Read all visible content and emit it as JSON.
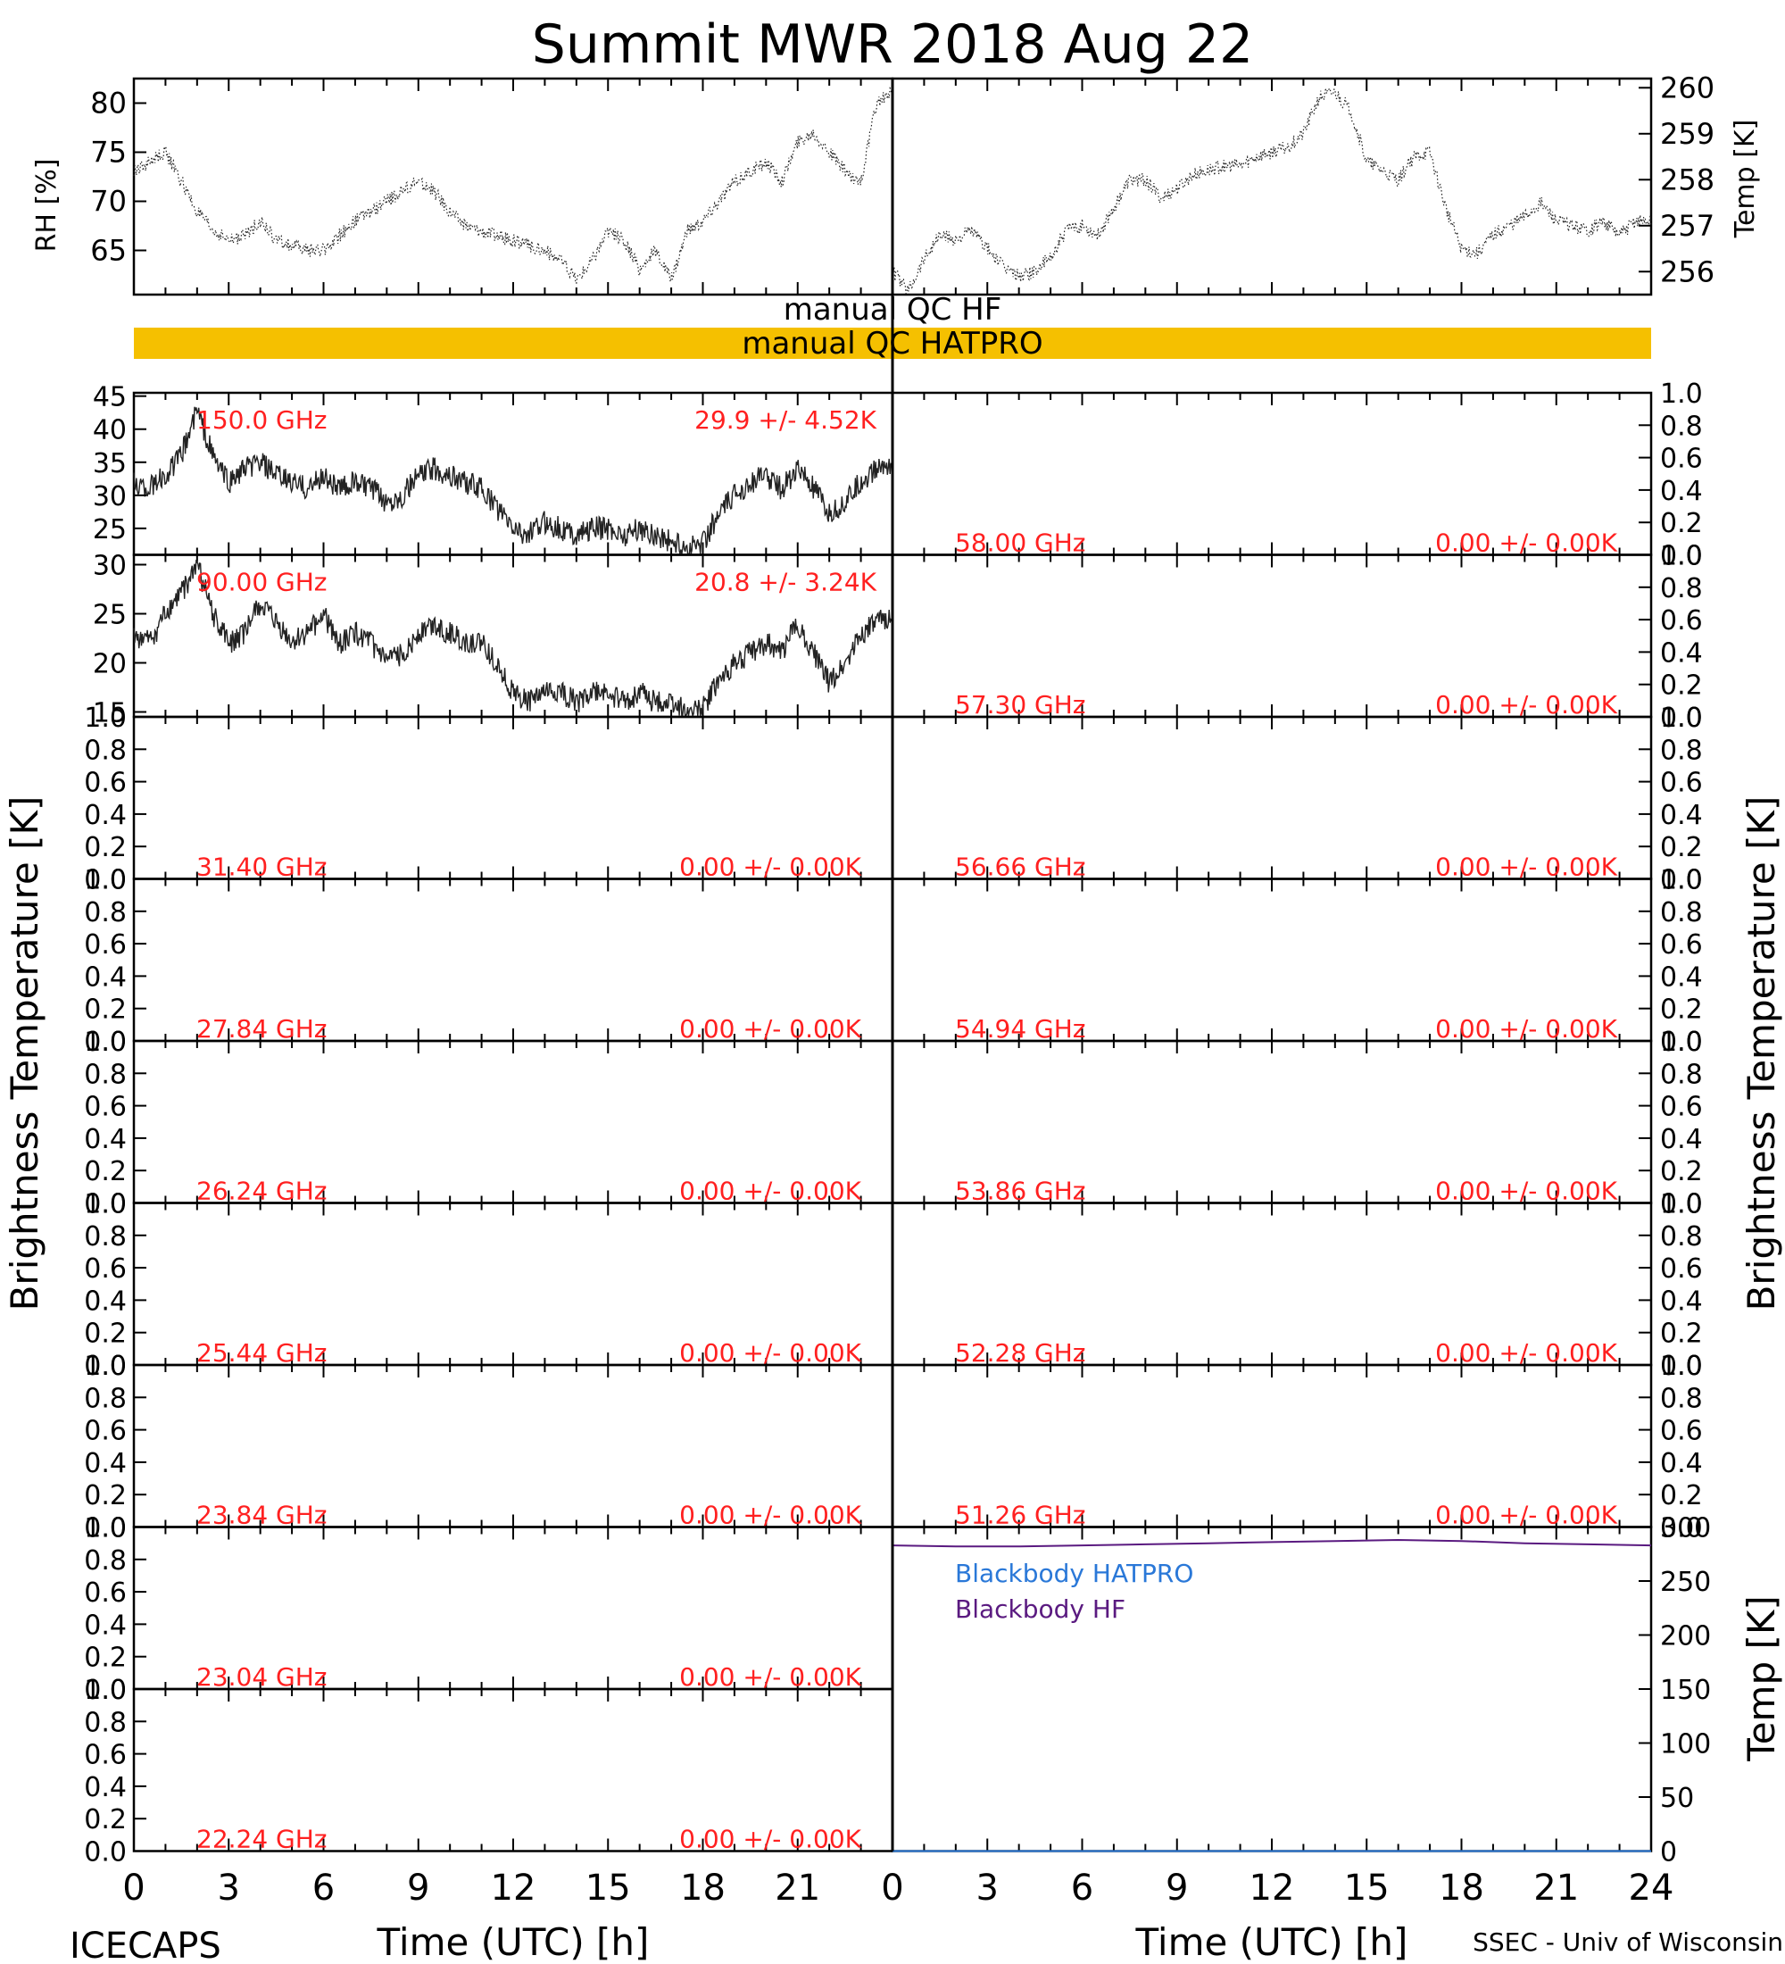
{
  "title": "Summit MWR 2018 Aug 22",
  "footer": {
    "left": "ICECAPS",
    "right": "SSEC - Univ of Wisconsin"
  },
  "colors": {
    "red": "#ff2020",
    "qc_bar": "#f5c000",
    "blue": "#2a78d8",
    "purple": "#5a1a80",
    "trace": "#222222"
  },
  "met": {
    "rh_label": "RH [%]",
    "temp_label": "Temp [K]",
    "rh_ticks": [
      "65",
      "70",
      "75",
      "80"
    ],
    "temp_ticks": [
      "256",
      "257",
      "258",
      "259",
      "260"
    ]
  },
  "qc": {
    "hf_label": "manual QC HF",
    "hatpro_label": "manual QC HATPRO"
  },
  "axis": {
    "xlabel": "Time (UTC) [h]",
    "x_ticks": [
      "0",
      "3",
      "6",
      "9",
      "12",
      "15",
      "18",
      "21"
    ],
    "x_ticks_right": [
      "0",
      "3",
      "6",
      "9",
      "12",
      "15",
      "18",
      "21",
      "24"
    ],
    "ylabel": "Brightness Temperature [K]",
    "unit_ticks": [
      "0.0",
      "0.2",
      "0.4",
      "0.6",
      "0.8",
      "1.0"
    ],
    "bb_ylabel": "Temp [K]",
    "bb_ticks": [
      "0",
      "50",
      "100",
      "150",
      "200",
      "250",
      "300"
    ]
  },
  "left_panels": [
    {
      "freq": "150.0 GHz",
      "stat": "29.9 +/-  4.52K",
      "ticks": [
        "25",
        "30",
        "35",
        "40",
        "45"
      ]
    },
    {
      "freq": "90.00 GHz",
      "stat": "20.8 +/-  3.24K",
      "ticks": [
        "15",
        "20",
        "25",
        "30"
      ]
    },
    {
      "freq": "31.40 GHz",
      "stat": "0.00 +/-  0.00K"
    },
    {
      "freq": "27.84 GHz",
      "stat": "0.00 +/-  0.00K"
    },
    {
      "freq": "26.24 GHz",
      "stat": "0.00 +/-  0.00K"
    },
    {
      "freq": "25.44 GHz",
      "stat": "0.00 +/-  0.00K"
    },
    {
      "freq": "23.84 GHz",
      "stat": "0.00 +/-  0.00K"
    },
    {
      "freq": "23.04 GHz",
      "stat": "0.00 +/-  0.00K"
    },
    {
      "freq": "22.24 GHz",
      "stat": "0.00 +/-  0.00K"
    }
  ],
  "right_panels": [
    {
      "freq": "58.00 GHz",
      "stat": "0.00 +/-  0.00K"
    },
    {
      "freq": "57.30 GHz",
      "stat": "0.00 +/-  0.00K"
    },
    {
      "freq": "56.66 GHz",
      "stat": "0.00 +/-  0.00K"
    },
    {
      "freq": "54.94 GHz",
      "stat": "0.00 +/-  0.00K"
    },
    {
      "freq": "53.86 GHz",
      "stat": "0.00 +/-  0.00K"
    },
    {
      "freq": "52.28 GHz",
      "stat": "0.00 +/-  0.00K"
    },
    {
      "freq": "51.26 GHz",
      "stat": "0.00 +/-  0.00K"
    }
  ],
  "blackbody": {
    "hatpro_label": "Blackbody HATPRO",
    "hf_label": "Blackbody HF"
  },
  "chart_data": [
    {
      "type": "scatter",
      "name": "rh",
      "x": [
        0,
        0.5,
        1,
        1.5,
        2,
        2.5,
        3,
        3.5,
        4,
        4.5,
        5,
        5.5,
        6,
        6.5,
        7,
        7.5,
        8,
        8.5,
        9,
        9.5,
        10,
        10.5,
        11,
        11.5,
        12,
        12.5,
        13,
        13.5,
        14,
        14.5,
        15,
        15.5,
        16,
        16.5,
        17,
        17.5,
        18,
        18.5,
        19,
        19.5,
        20,
        20.5,
        21,
        21.5,
        22,
        22.5,
        23,
        23.5,
        24
      ],
      "y": [
        73,
        74,
        75,
        72,
        69,
        67,
        66,
        66.5,
        68,
        66,
        65.5,
        65,
        65,
        66.5,
        68,
        69,
        70,
        71,
        72,
        71,
        69,
        67.5,
        67,
        66.5,
        66,
        65.5,
        65,
        64,
        62,
        64,
        67,
        66,
        63,
        65,
        62,
        67,
        68,
        70,
        72,
        73,
        74,
        72,
        76,
        77,
        75,
        73,
        72,
        80,
        81
      ],
      "xlim": [
        0,
        24
      ],
      "ylim": [
        60.5,
        82.5
      ]
    },
    {
      "type": "scatter",
      "name": "temp",
      "x": [
        0,
        0.5,
        1,
        1.5,
        2,
        2.5,
        3,
        3.5,
        4,
        4.5,
        5,
        5.5,
        6,
        6.5,
        7,
        7.5,
        8,
        8.5,
        9,
        9.5,
        10,
        10.5,
        11,
        11.5,
        12,
        12.5,
        13,
        13.5,
        14,
        14.5,
        15,
        15.5,
        16,
        16.5,
        17,
        17.5,
        18,
        18.5,
        19,
        19.5,
        20,
        20.5,
        21,
        21.5,
        22,
        22.5,
        23,
        23.5,
        24
      ],
      "y": [
        256,
        255.6,
        256.3,
        256.8,
        256.7,
        256.9,
        256.5,
        256.1,
        255.9,
        256,
        256.3,
        256.9,
        257,
        256.8,
        257.4,
        258,
        258,
        257.6,
        257.8,
        258.1,
        258.2,
        258.3,
        258.3,
        258.5,
        258.6,
        258.7,
        259,
        259.8,
        259.9,
        259.5,
        258.4,
        258.2,
        258,
        258.5,
        258.6,
        257.4,
        256.5,
        256.4,
        256.8,
        257,
        257.2,
        257.5,
        257.1,
        257,
        256.9,
        257.1,
        256.8,
        257.1,
        257.1
      ],
      "xlim": [
        0,
        24
      ],
      "ylim": [
        255.5,
        260.2
      ]
    },
    {
      "type": "line",
      "name": "150.0 GHz",
      "x": [
        0,
        0.5,
        1,
        1.5,
        2,
        2.5,
        3,
        3.5,
        4,
        4.5,
        5,
        5.5,
        6,
        6.5,
        7,
        7.5,
        8,
        8.5,
        9,
        9.5,
        10,
        10.5,
        11,
        11.5,
        12,
        12.5,
        13,
        13.5,
        14,
        14.5,
        15,
        15.5,
        16,
        16.5,
        17,
        17.5,
        18,
        18.5,
        19,
        19.5,
        20,
        20.5,
        21,
        21.5,
        22,
        22.5,
        23,
        23.5,
        24
      ],
      "y": [
        32,
        31,
        33,
        36,
        43,
        36,
        32,
        34,
        35,
        33,
        32,
        31,
        33,
        31,
        32,
        31,
        29,
        30,
        33,
        34,
        33,
        32,
        31,
        28,
        25,
        24,
        26,
        25,
        24,
        25,
        25,
        24,
        25,
        24,
        23,
        22,
        23,
        27,
        30,
        32,
        33,
        31,
        34,
        31,
        27,
        29,
        32,
        34,
        35
      ],
      "xlim": [
        0,
        24
      ],
      "ylim": [
        21,
        45.5
      ]
    },
    {
      "type": "line",
      "name": "90.00 GHz",
      "x": [
        0,
        0.5,
        1,
        1.5,
        2,
        2.5,
        3,
        3.5,
        4,
        4.5,
        5,
        5.5,
        6,
        6.5,
        7,
        7.5,
        8,
        8.5,
        9,
        9.5,
        10,
        10.5,
        11,
        11.5,
        12,
        12.5,
        13,
        13.5,
        14,
        14.5,
        15,
        15.5,
        16,
        16.5,
        17,
        17.5,
        18,
        18.5,
        19,
        19.5,
        20,
        20.5,
        21,
        21.5,
        22,
        22.5,
        23,
        23.5,
        24
      ],
      "y": [
        23,
        22,
        25,
        27,
        30,
        25,
        22,
        23,
        26,
        24,
        22,
        23,
        25,
        22,
        23,
        22,
        20,
        21,
        23,
        24,
        23,
        22,
        22,
        20,
        17,
        16,
        17,
        17,
        16,
        17,
        17,
        16,
        17,
        16,
        16,
        15,
        15.5,
        18,
        20,
        21,
        22,
        21,
        24,
        21,
        18,
        20,
        23,
        24,
        25
      ],
      "xlim": [
        0,
        24
      ],
      "ylim": [
        14.5,
        31
      ]
    },
    {
      "type": "line",
      "name": "Blackbody HF",
      "x": [
        0,
        2,
        4,
        6,
        8,
        10,
        12,
        14,
        16,
        18,
        20,
        22,
        24
      ],
      "y": [
        283,
        282,
        282,
        283,
        284,
        285,
        286,
        287,
        288,
        287,
        285,
        284,
        283
      ],
      "xlim": [
        0,
        24
      ],
      "ylim": [
        0,
        300
      ]
    },
    {
      "type": "line",
      "name": "Blackbody HATPRO",
      "x": [
        0,
        24
      ],
      "y": [
        0,
        0
      ],
      "xlim": [
        0,
        24
      ],
      "ylim": [
        0,
        300
      ]
    }
  ]
}
